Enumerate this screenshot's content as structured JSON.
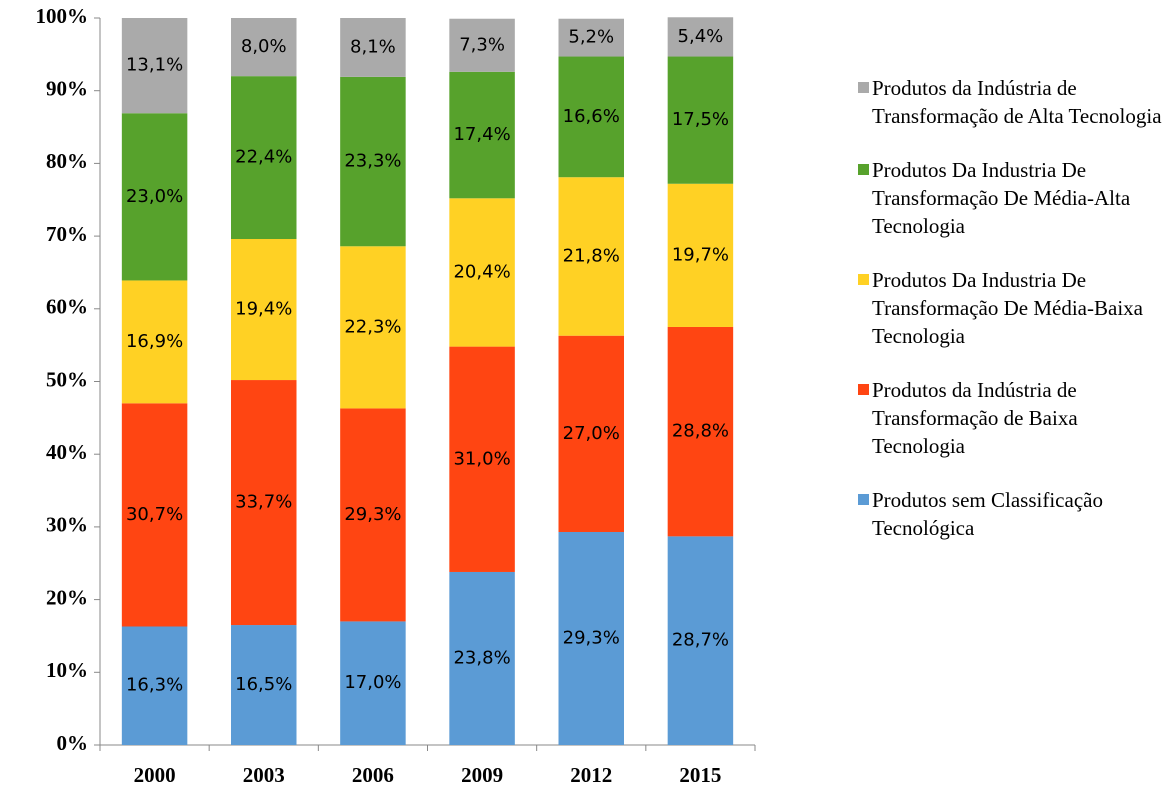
{
  "chart_data": {
    "type": "stacked_bar",
    "categories": [
      "2000",
      "2003",
      "2006",
      "2009",
      "2012",
      "2015"
    ],
    "ylim": [
      0,
      100
    ],
    "yticks": [
      {
        "value": 0,
        "label": "0%"
      },
      {
        "value": 10,
        "label": "10%"
      },
      {
        "value": 20,
        "label": "20%"
      },
      {
        "value": 30,
        "label": "30%"
      },
      {
        "value": 40,
        "label": "40%"
      },
      {
        "value": 50,
        "label": "50%"
      },
      {
        "value": 60,
        "label": "60%"
      },
      {
        "value": 70,
        "label": "70%"
      },
      {
        "value": 80,
        "label": "80%"
      },
      {
        "value": 90,
        "label": "90%"
      },
      {
        "value": 100,
        "label": "100%"
      }
    ],
    "legend": "right",
    "series": [
      {
        "name": "Produtos sem Classificação Tecnológica",
        "color": "#5b9bd5",
        "values": [
          16.3,
          16.5,
          17.0,
          23.8,
          29.3,
          28.7
        ],
        "value_labels": [
          "16,3%",
          "16,5%",
          "17,0%",
          "23,8%",
          "29,3%",
          "28,7%"
        ]
      },
      {
        "name": "Produtos da Indústria de Transformação de Baixa Tecnologia",
        "color": "#ff4512",
        "values": [
          30.7,
          33.7,
          29.3,
          31.0,
          27.0,
          28.8
        ],
        "value_labels": [
          "30,7%",
          "33,7%",
          "29,3%",
          "31,0%",
          "27,0%",
          "28,8%"
        ]
      },
      {
        "name": "Produtos Da Industria De Transformação De Média-Baixa Tecnologia",
        "color": "#ffd124",
        "values": [
          16.9,
          19.4,
          22.3,
          20.4,
          21.8,
          19.7
        ],
        "value_labels": [
          "16,9%",
          "19,4%",
          "22,3%",
          "20,4%",
          "21,8%",
          "19,7%"
        ]
      },
      {
        "name": "Produtos Da Industria De Transformação De Média-Alta Tecnologia",
        "color": "#57a22c",
        "values": [
          23.0,
          22.4,
          23.3,
          17.4,
          16.6,
          17.5
        ],
        "value_labels": [
          "23,0%",
          "22,4%",
          "23,3%",
          "17,4%",
          "16,6%",
          "17,5%"
        ]
      },
      {
        "name": "Produtos da Indústria de Transformação de Alta Tecnologia",
        "color": "#aaaaaa",
        "values": [
          13.1,
          8.0,
          8.1,
          7.3,
          5.2,
          5.4
        ],
        "value_labels": [
          "13,1%",
          "8,0%",
          "8,1%",
          "7,3%",
          "5,2%",
          "5,4%"
        ]
      }
    ]
  }
}
